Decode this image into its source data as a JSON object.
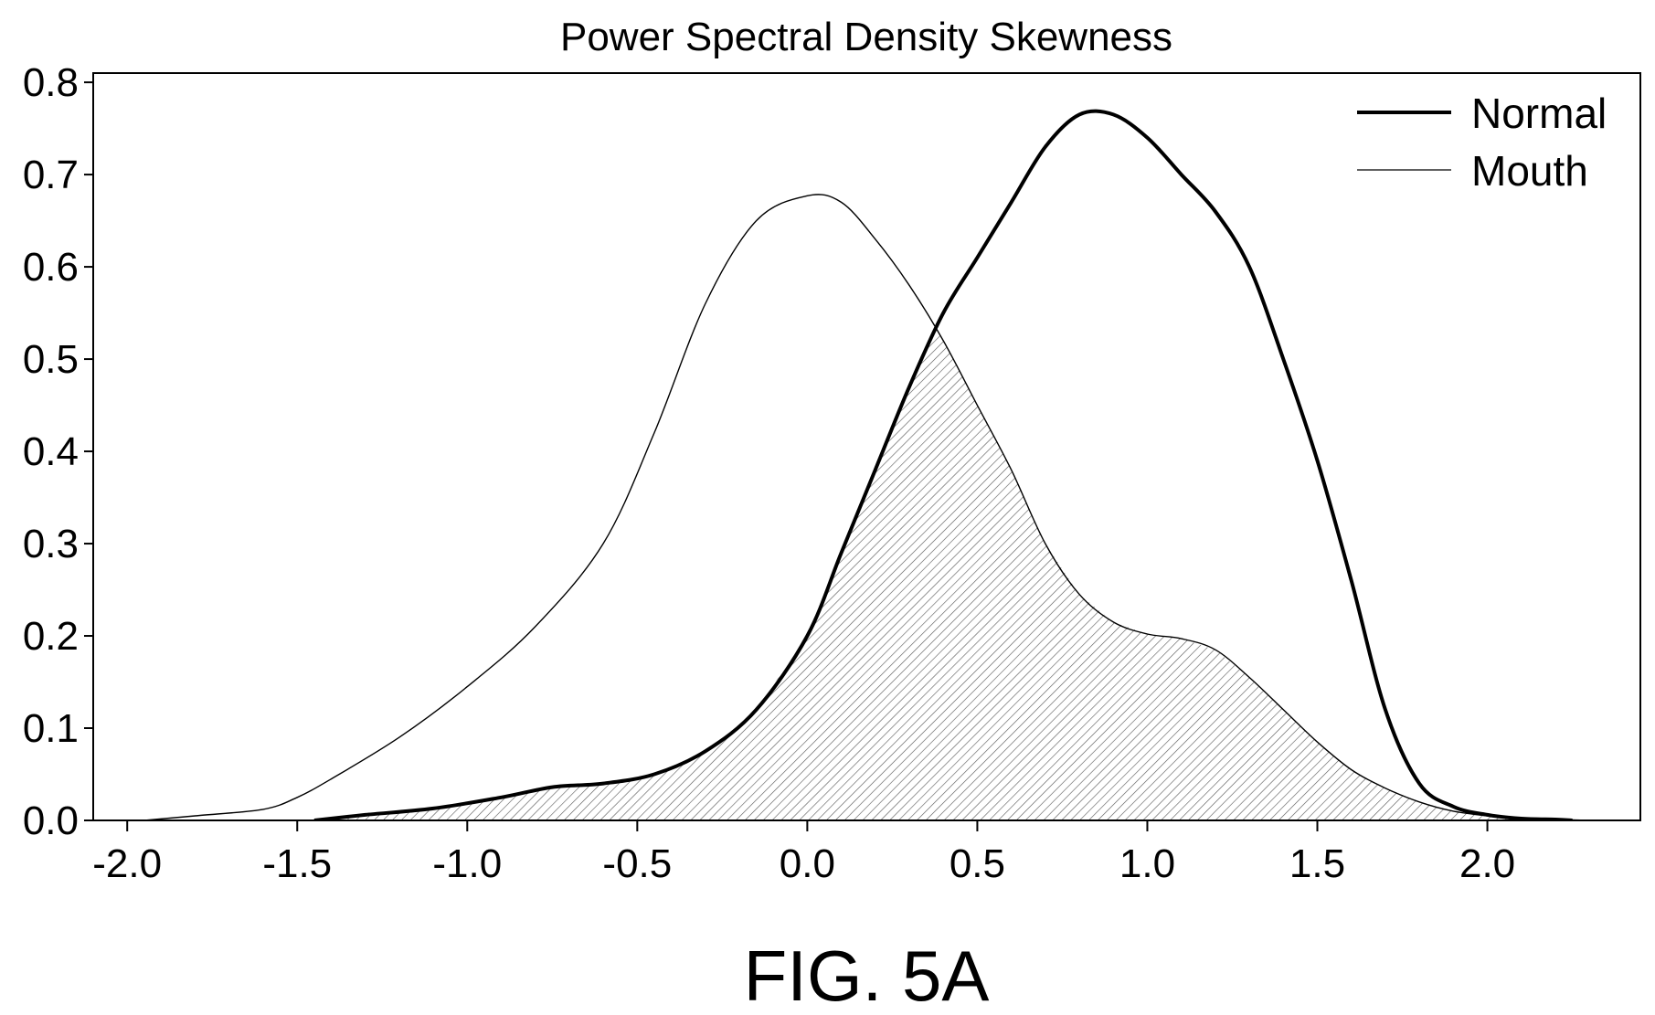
{
  "caption": "FIG. 5A",
  "chart_data": {
    "type": "line",
    "title": "Power Spectral Density Skewness",
    "xlabel": "",
    "ylabel": "",
    "xlim": [
      -2.1,
      2.45
    ],
    "ylim": [
      0.0,
      0.81
    ],
    "x_ticks": [
      -2.0,
      -1.5,
      -1.0,
      -0.5,
      0.0,
      0.5,
      1.0,
      1.5,
      2.0
    ],
    "x_tick_labels": [
      "-2.0",
      "-1.5",
      "-1.0",
      "-0.5",
      "0.0",
      "0.5",
      "1.0",
      "1.5",
      "2.0"
    ],
    "y_ticks": [
      0.0,
      0.1,
      0.2,
      0.3,
      0.4,
      0.5,
      0.6,
      0.7,
      0.8
    ],
    "y_tick_labels": [
      "0.0",
      "0.1",
      "0.2",
      "0.3",
      "0.4",
      "0.5",
      "0.6",
      "0.7",
      "0.8"
    ],
    "grid": false,
    "legend": "top-right",
    "overlap_fill": "hatched",
    "series": [
      {
        "name": "Normal",
        "style": "thick",
        "color": "#000000",
        "x": [
          -1.45,
          -1.3,
          -1.1,
          -0.9,
          -0.75,
          -0.6,
          -0.45,
          -0.3,
          -0.15,
          0.0,
          0.1,
          0.2,
          0.3,
          0.4,
          0.5,
          0.6,
          0.7,
          0.8,
          0.9,
          1.0,
          1.1,
          1.2,
          1.3,
          1.4,
          1.5,
          1.6,
          1.7,
          1.8,
          1.9,
          2.0,
          2.1,
          2.2,
          2.25
        ],
        "y": [
          0.0,
          0.006,
          0.013,
          0.025,
          0.036,
          0.04,
          0.05,
          0.075,
          0.12,
          0.2,
          0.29,
          0.38,
          0.47,
          0.55,
          0.61,
          0.67,
          0.73,
          0.765,
          0.765,
          0.74,
          0.7,
          0.66,
          0.6,
          0.5,
          0.39,
          0.26,
          0.12,
          0.04,
          0.015,
          0.006,
          0.002,
          0.001,
          0.0
        ]
      },
      {
        "name": "Mouth",
        "style": "thin",
        "color": "#000000",
        "x": [
          -1.95,
          -1.8,
          -1.6,
          -1.5,
          -1.4,
          -1.2,
          -1.0,
          -0.8,
          -0.6,
          -0.45,
          -0.3,
          -0.15,
          0.0,
          0.1,
          0.2,
          0.3,
          0.4,
          0.5,
          0.6,
          0.7,
          0.8,
          0.9,
          1.0,
          1.1,
          1.2,
          1.3,
          1.4,
          1.5,
          1.6,
          1.7,
          1.8,
          1.9,
          2.0,
          2.1,
          2.2,
          2.3
        ],
        "y": [
          0.0,
          0.005,
          0.012,
          0.025,
          0.045,
          0.09,
          0.145,
          0.21,
          0.3,
          0.42,
          0.56,
          0.65,
          0.677,
          0.67,
          0.63,
          0.58,
          0.52,
          0.45,
          0.38,
          0.3,
          0.245,
          0.215,
          0.202,
          0.197,
          0.185,
          0.155,
          0.12,
          0.085,
          0.055,
          0.035,
          0.02,
          0.01,
          0.005,
          0.002,
          0.001,
          0.0
        ]
      }
    ]
  }
}
